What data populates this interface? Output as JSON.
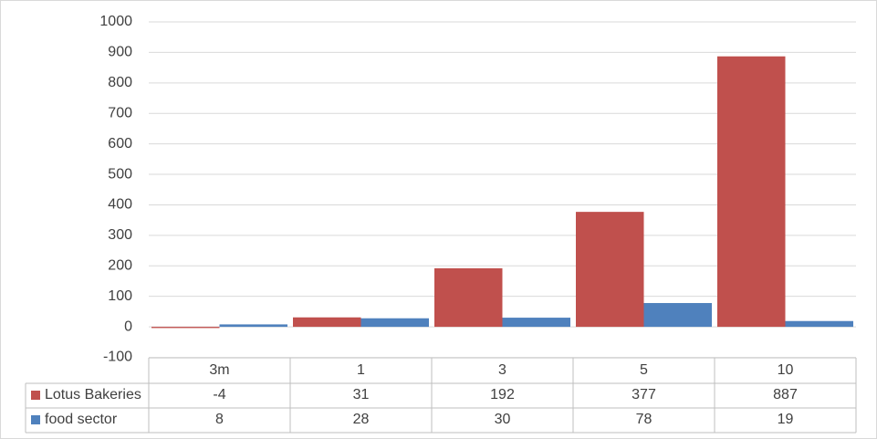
{
  "chart_data": {
    "type": "bar",
    "categories": [
      "3m",
      "1",
      "3",
      "5",
      "10"
    ],
    "series": [
      {
        "name": "Lotus Bakeries",
        "color": "#c0504d",
        "values": [
          -4,
          31,
          192,
          377,
          887
        ]
      },
      {
        "name": "food sector",
        "color": "#4f81bd",
        "values": [
          8,
          28,
          30,
          78,
          19
        ]
      }
    ],
    "ylim": [
      -100,
      1000
    ],
    "yticks": [
      -100,
      0,
      100,
      200,
      300,
      400,
      500,
      600,
      700,
      800,
      900,
      1000
    ],
    "grid": true,
    "data_table": true
  }
}
